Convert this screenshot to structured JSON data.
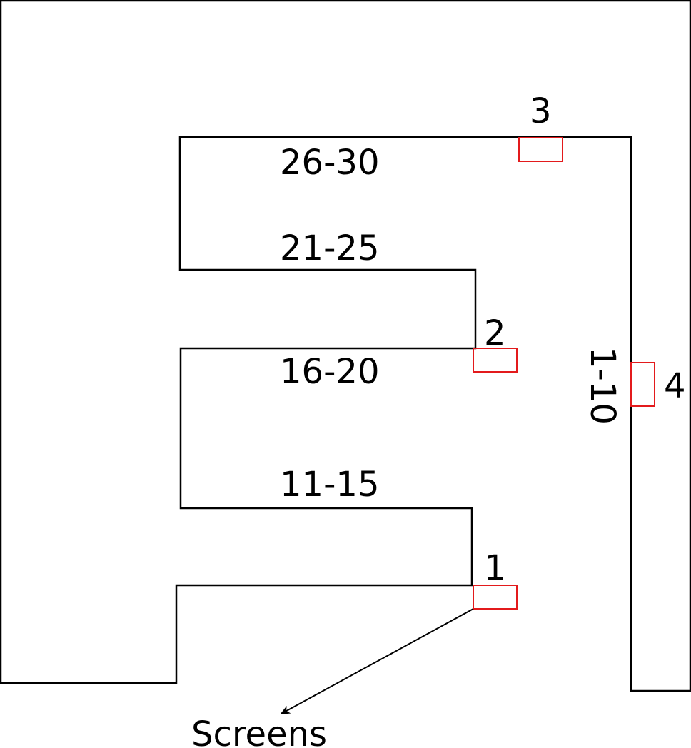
{
  "colors": {
    "outline": "#000000",
    "marker": "#e31a1c",
    "background": "#ffffff"
  },
  "shelf_ranges": {
    "r26_30": "26-30",
    "r21_25": "21-25",
    "r16_20": "16-20",
    "r11_15": "11-15",
    "r1_10": "1-10"
  },
  "markers": {
    "m1": "1",
    "m2": "2",
    "m3": "3",
    "m4": "4"
  },
  "screens_label": "Screens"
}
